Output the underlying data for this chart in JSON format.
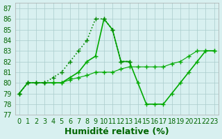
{
  "line_flat": {
    "x": [
      0,
      1,
      2,
      3,
      4,
      5,
      6,
      7,
      8,
      9,
      10,
      11,
      12,
      13,
      14,
      15,
      16,
      17,
      18,
      19,
      20,
      21,
      22,
      23
    ],
    "y": [
      79,
      80,
      80,
      80,
      80,
      80,
      80.3,
      80.5,
      80.7,
      81,
      81,
      81,
      81.3,
      81.5,
      81.5,
      81.5,
      81.5,
      81.5,
      81.8,
      82,
      82.5,
      83,
      83,
      83
    ],
    "style": "-",
    "marker": "+",
    "color": "#00aa00",
    "linewidth": 0.8,
    "markersize": 4
  },
  "line_peak_drop": {
    "x": [
      0,
      1,
      2,
      3,
      4,
      5,
      6,
      7,
      8,
      9,
      10,
      11,
      12,
      13,
      14,
      15,
      16,
      17,
      18,
      19,
      20,
      21,
      22,
      23
    ],
    "y": [
      79,
      80,
      80,
      80,
      80,
      80,
      80.5,
      81,
      82,
      82.5,
      86,
      85,
      82,
      82,
      80,
      78,
      78,
      78,
      79,
      80,
      81,
      82,
      83,
      83
    ],
    "style": "-",
    "marker": "+",
    "color": "#00aa00",
    "linewidth": 1.2,
    "markersize": 5
  },
  "line_dotted": {
    "x": [
      0,
      1,
      2,
      3,
      4,
      5,
      6,
      7,
      8,
      9,
      10,
      11,
      12,
      13
    ],
    "y": [
      79,
      80,
      80,
      80,
      80.5,
      81,
      82,
      83,
      84,
      86,
      86,
      85,
      82,
      82
    ],
    "style": ":",
    "marker": "+",
    "color": "#008800",
    "linewidth": 1.2,
    "markersize": 5
  },
  "xlim": [
    -0.5,
    23.5
  ],
  "ylim": [
    77,
    87.5
  ],
  "yticks": [
    77,
    78,
    79,
    80,
    81,
    82,
    83,
    84,
    85,
    86,
    87
  ],
  "xticks": [
    0,
    1,
    2,
    3,
    4,
    5,
    6,
    7,
    8,
    9,
    10,
    11,
    12,
    13,
    14,
    15,
    16,
    17,
    18,
    19,
    20,
    21,
    22,
    23
  ],
  "xlabel": "Humidité relative (%)",
  "bg_color": "#d8f0f0",
  "grid_color": "#aacccc",
  "tick_color": "#006600",
  "xlabel_color": "#006600",
  "xlabel_fontsize": 9,
  "tick_fontsize": 7
}
